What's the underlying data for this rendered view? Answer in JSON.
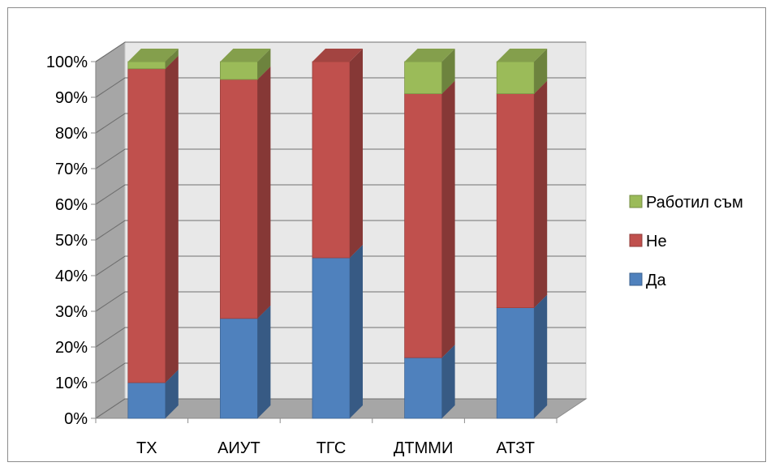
{
  "chart_data": {
    "type": "bar",
    "stacked": "percent",
    "style": "3d-column",
    "categories": [
      "ТХ",
      "АИУТ",
      "ТГС",
      "ДТММИ",
      "АТЗТ"
    ],
    "series": [
      {
        "name": "Да",
        "values": [
          10,
          28,
          45,
          17,
          31
        ],
        "color": "#4F81BD"
      },
      {
        "name": "Не",
        "values": [
          88,
          67,
          55,
          74,
          60
        ],
        "color": "#C0504D"
      },
      {
        "name": "Работил съм",
        "values": [
          2,
          5,
          0,
          9,
          9
        ],
        "color": "#9BBB59"
      }
    ],
    "ylim": [
      0,
      100
    ],
    "y_ticks": [
      "0%",
      "10%",
      "20%",
      "30%",
      "40%",
      "50%",
      "60%",
      "70%",
      "80%",
      "90%",
      "100%"
    ],
    "grid": true,
    "legend_position": "right"
  }
}
